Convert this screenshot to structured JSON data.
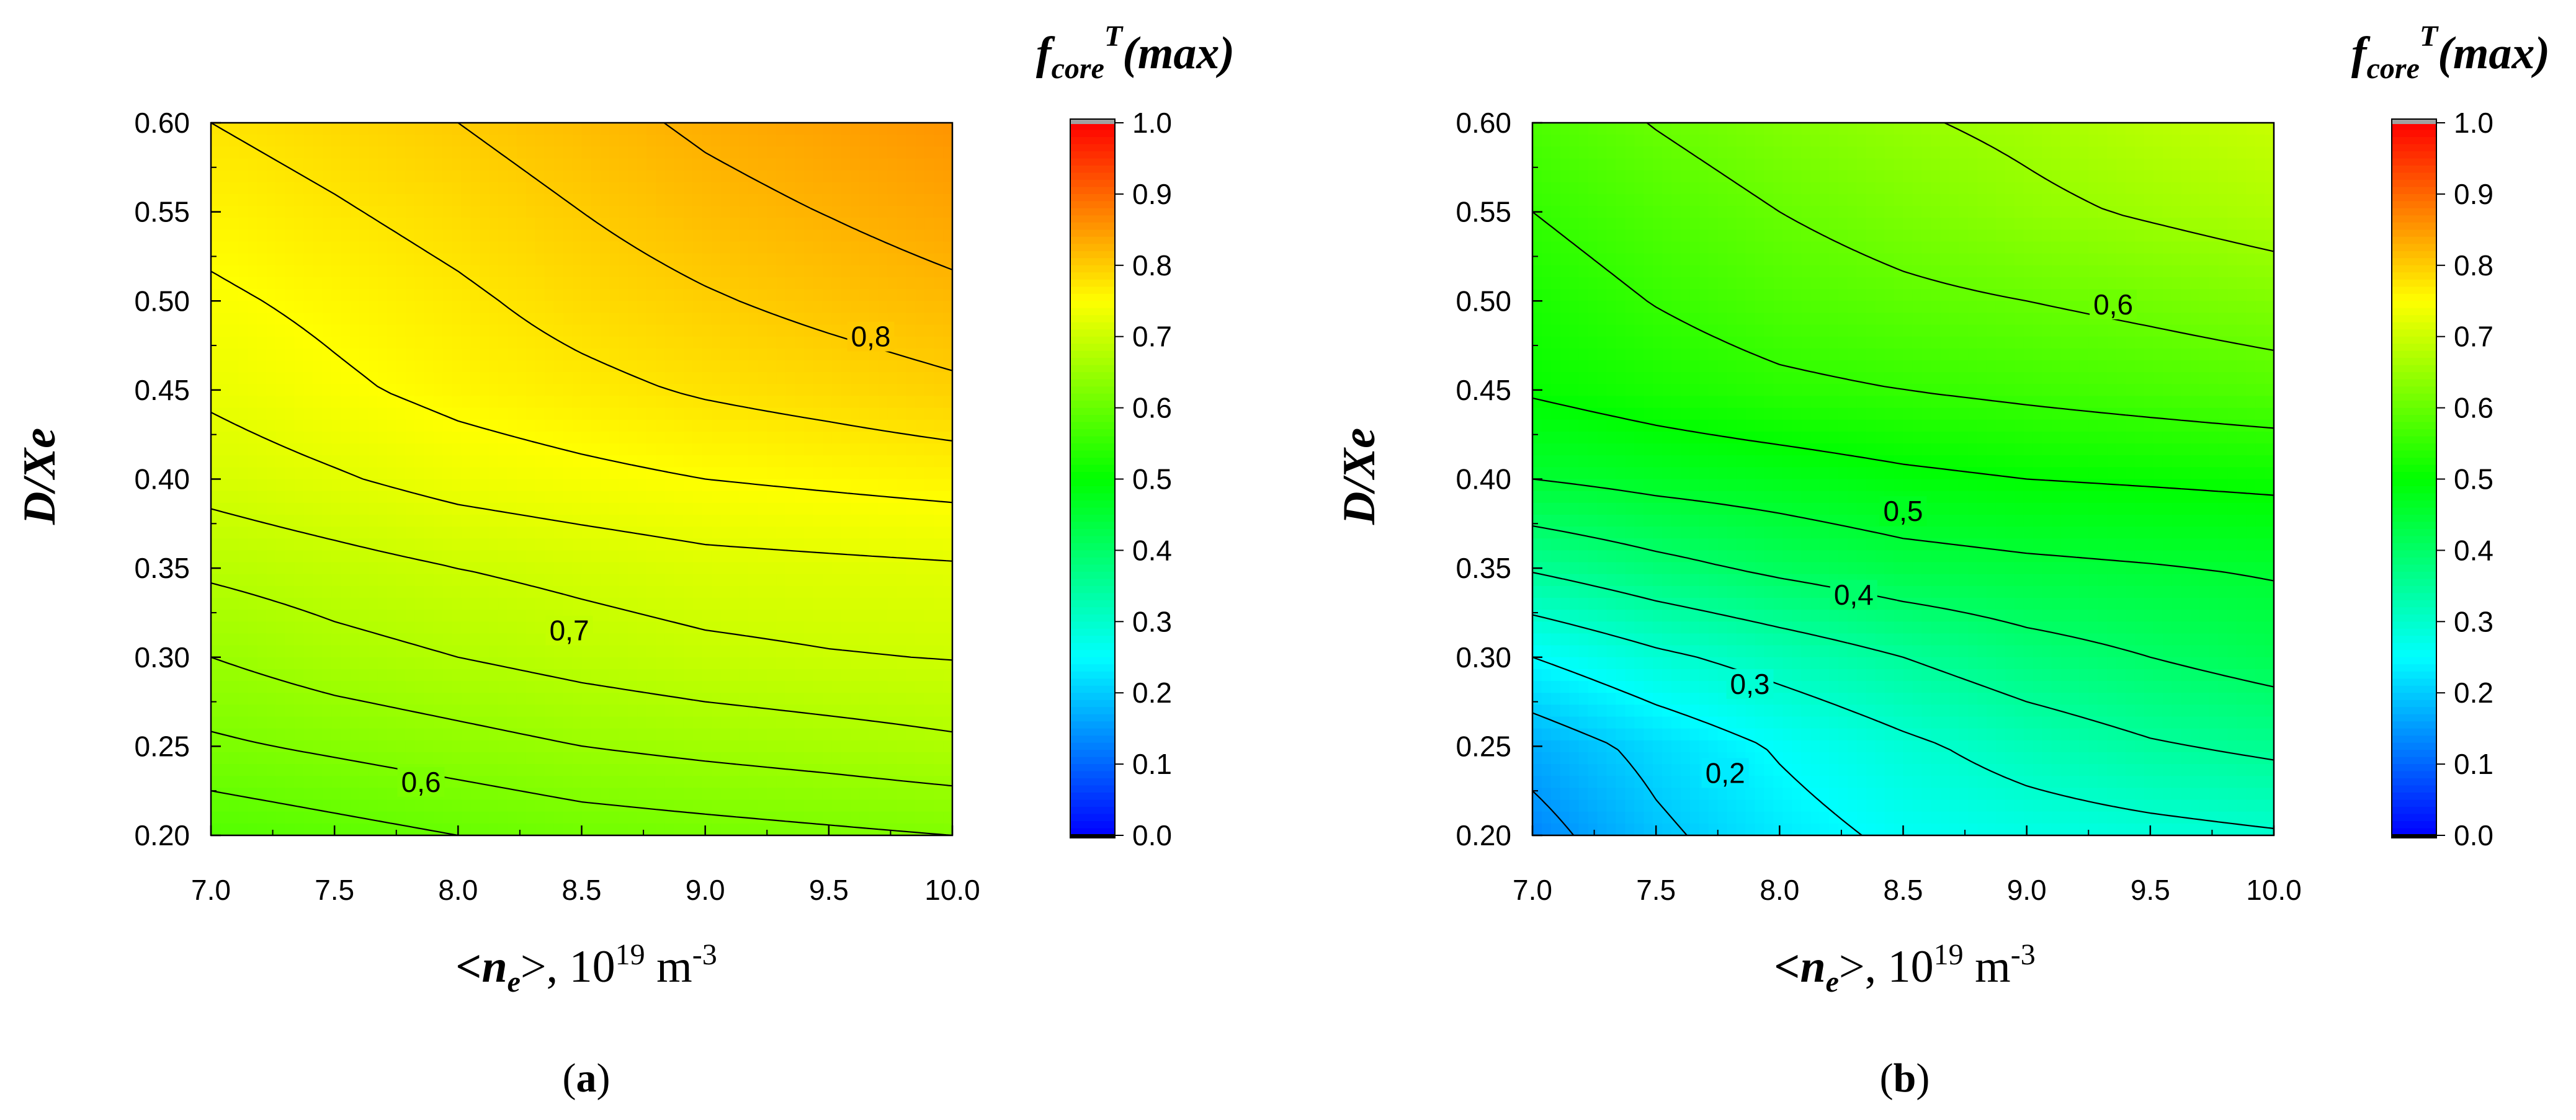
{
  "chart_data": [
    {
      "type": "heatmap",
      "subtype": "filled-contour",
      "panel_label": "a",
      "title": "",
      "colorbar_title": {
        "base": "f",
        "sub": "core",
        "sup": "T",
        "rest": "(max)"
      },
      "xlabel": {
        "open": "<",
        "var": "n",
        "var_sub": "e",
        "close": ">, 10",
        "exp": "19",
        "unit": " m",
        "unit_exp": "-3"
      },
      "ylabel": "D/Xe",
      "x": [
        7.0,
        7.5,
        8.0,
        8.5,
        9.0,
        9.5,
        10.0
      ],
      "y": [
        0.2,
        0.25,
        0.3,
        0.35,
        0.4,
        0.45,
        0.5,
        0.55,
        0.6
      ],
      "z": [
        [
          0.58,
          0.59,
          0.6,
          0.61,
          0.615,
          0.62,
          0.625
        ],
        [
          0.62,
          0.63,
          0.64,
          0.65,
          0.657,
          0.663,
          0.67
        ],
        [
          0.65,
          0.665,
          0.675,
          0.685,
          0.693,
          0.698,
          0.701
        ],
        [
          0.68,
          0.69,
          0.7,
          0.708,
          0.716,
          0.719,
          0.722
        ],
        [
          0.71,
          0.722,
          0.735,
          0.743,
          0.75,
          0.755,
          0.76
        ],
        [
          0.73,
          0.745,
          0.758,
          0.768,
          0.778,
          0.786,
          0.795
        ],
        [
          0.745,
          0.757,
          0.77,
          0.785,
          0.797,
          0.808,
          0.818
        ],
        [
          0.76,
          0.772,
          0.785,
          0.8,
          0.815,
          0.826,
          0.838
        ],
        [
          0.775,
          0.787,
          0.8,
          0.815,
          0.83,
          0.842,
          0.855
        ]
      ],
      "contour_levels": [
        0.55,
        0.575,
        0.6,
        0.625,
        0.65,
        0.675,
        0.7,
        0.725,
        0.75,
        0.775,
        0.8,
        0.825
      ],
      "contour_labels": [
        {
          "text": "0,6",
          "x": 7.85,
          "y": 0.23
        },
        {
          "text": "0,7",
          "x": 8.45,
          "y": 0.315
        },
        {
          "text": "0,8",
          "x": 9.67,
          "y": 0.48
        }
      ],
      "xticks": [
        "7.0",
        "7.5",
        "8.0",
        "8.5",
        "9.0",
        "9.5",
        "10.0"
      ],
      "yticks": [
        "0.20",
        "0.25",
        "0.30",
        "0.35",
        "0.40",
        "0.45",
        "0.50",
        "0.55",
        "0.60"
      ],
      "xlim": [
        7.0,
        10.0
      ],
      "ylim": [
        0.2,
        0.6
      ],
      "colorbar_range": [
        0.0,
        1.0
      ],
      "colorbar_ticks": [
        "0.0",
        "0.1",
        "0.2",
        "0.3",
        "0.4",
        "0.5",
        "0.6",
        "0.7",
        "0.8",
        "0.9",
        "1.0"
      ]
    },
    {
      "type": "heatmap",
      "subtype": "filled-contour",
      "panel_label": "b",
      "title": "",
      "colorbar_title": {
        "base": "f",
        "sub": "core",
        "sup": "T",
        "rest": "(max)"
      },
      "xlabel": {
        "open": "<",
        "var": "n",
        "var_sub": "e",
        "close": ">, 10",
        "exp": "19",
        "unit": " m",
        "unit_exp": "-3"
      },
      "ylabel": "D/Xe",
      "x": [
        7.0,
        7.5,
        8.0,
        8.5,
        9.0,
        9.5,
        10.0
      ],
      "y": [
        0.2,
        0.25,
        0.3,
        0.35,
        0.4,
        0.45,
        0.5,
        0.55,
        0.6
      ],
      "z": [
        [
          0.13,
          0.19,
          0.23,
          0.26,
          0.275,
          0.285,
          0.295
        ],
        [
          0.17,
          0.215,
          0.255,
          0.29,
          0.32,
          0.345,
          0.36
        ],
        [
          0.25,
          0.29,
          0.32,
          0.35,
          0.38,
          0.4,
          0.42
        ],
        [
          0.355,
          0.385,
          0.41,
          0.43,
          0.44,
          0.447,
          0.455
        ],
        [
          0.45,
          0.465,
          0.475,
          0.49,
          0.5,
          0.505,
          0.51
        ],
        [
          0.505,
          0.523,
          0.54,
          0.55,
          0.56,
          0.57,
          0.58
        ],
        [
          0.525,
          0.552,
          0.575,
          0.59,
          0.6,
          0.612,
          0.625
        ],
        [
          0.55,
          0.577,
          0.6,
          0.62,
          0.64,
          0.655,
          0.67
        ],
        [
          0.575,
          0.602,
          0.625,
          0.645,
          0.66,
          0.68,
          0.695
        ]
      ],
      "contour_levels": [
        0.1,
        0.15,
        0.2,
        0.25,
        0.3,
        0.35,
        0.4,
        0.45,
        0.5,
        0.55,
        0.6,
        0.65
      ],
      "contour_labels": [
        {
          "text": "0,2",
          "x": 7.78,
          "y": 0.235
        },
        {
          "text": "0,3",
          "x": 7.88,
          "y": 0.285
        },
        {
          "text": "0,4",
          "x": 8.3,
          "y": 0.335
        },
        {
          "text": "0,5",
          "x": 8.5,
          "y": 0.382
        },
        {
          "text": "0,6",
          "x": 9.35,
          "y": 0.498
        }
      ],
      "xticks": [
        "7.0",
        "7.5",
        "8.0",
        "8.5",
        "9.0",
        "9.5",
        "10.0"
      ],
      "yticks": [
        "0.20",
        "0.25",
        "0.30",
        "0.35",
        "0.40",
        "0.45",
        "0.50",
        "0.55",
        "0.60"
      ],
      "xlim": [
        7.0,
        10.0
      ],
      "ylim": [
        0.2,
        0.6
      ],
      "colorbar_range": [
        0.0,
        1.0
      ],
      "colorbar_ticks": [
        "0.0",
        "0.1",
        "0.2",
        "0.3",
        "0.4",
        "0.5",
        "0.6",
        "0.7",
        "0.8",
        "0.9",
        "1.0"
      ]
    }
  ],
  "colormap": [
    "#0000ff",
    "#0080ff",
    "#00ffff",
    "#00ff80",
    "#00ff00",
    "#80ff00",
    "#ffff00",
    "#ff8000",
    "#ff0000"
  ],
  "colorbar_end_caps": {
    "top": "#a0a0a0",
    "bottom": "#000000"
  },
  "captions": {
    "a": "a",
    "b": "b"
  }
}
